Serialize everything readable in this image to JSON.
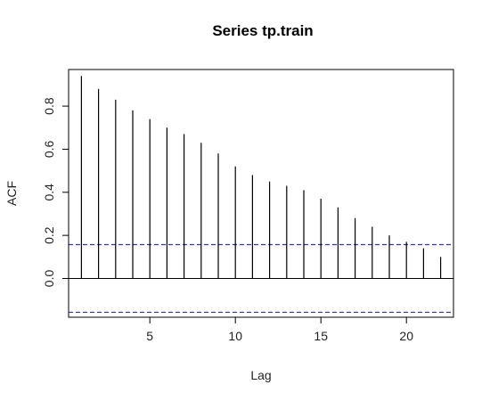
{
  "chart_data": {
    "type": "bar",
    "title": "Series  tp.train",
    "xlabel": "Lag",
    "ylabel": "ACF",
    "xlim": [
      0.25,
      22.75
    ],
    "ylim": [
      -0.18,
      0.97
    ],
    "x_ticks": [
      5,
      10,
      15,
      20
    ],
    "y_ticks": [
      0.0,
      0.2,
      0.4,
      0.6,
      0.8
    ],
    "x_tick_labels": [
      "5",
      "10",
      "15",
      "20"
    ],
    "y_tick_labels": [
      "0.0",
      "0.2",
      "0.4",
      "0.6",
      "0.8"
    ],
    "lags": [
      1,
      2,
      3,
      4,
      5,
      6,
      7,
      8,
      9,
      10,
      11,
      12,
      13,
      14,
      15,
      16,
      17,
      18,
      19,
      20,
      21,
      22
    ],
    "values": [
      0.94,
      0.88,
      0.83,
      0.78,
      0.74,
      0.7,
      0.67,
      0.63,
      0.58,
      0.52,
      0.48,
      0.45,
      0.43,
      0.41,
      0.37,
      0.33,
      0.28,
      0.24,
      0.2,
      0.17,
      0.14,
      0.1
    ],
    "confidence_band": 0.157,
    "confidence_color": "#3333aa",
    "grid": false
  }
}
